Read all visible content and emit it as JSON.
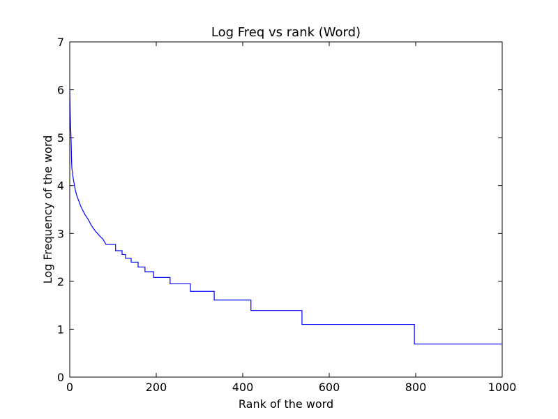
{
  "chart_data": {
    "type": "line",
    "title": "Log Freq vs rank (Word)",
    "xlabel": "Rank of the word",
    "ylabel": "Log Frequency of the word",
    "x": [
      0,
      1,
      2,
      3,
      4,
      5,
      8,
      10,
      13,
      16,
      20,
      24,
      28,
      32,
      36,
      40,
      44,
      48,
      52,
      56,
      60,
      64,
      70,
      76,
      80,
      84,
      106,
      106,
      121,
      121,
      129,
      129,
      142,
      142,
      158,
      158,
      174,
      174,
      194,
      194,
      232,
      232,
      279,
      279,
      334,
      334,
      419,
      419,
      537,
      537,
      797,
      797,
      1000
    ],
    "series": [
      {
        "color": "#0000ff",
        "values": [
          6.0,
          5.5,
          5.2,
          5.0,
          4.6,
          4.35,
          4.15,
          4.05,
          3.9,
          3.8,
          3.7,
          3.6,
          3.52,
          3.45,
          3.38,
          3.33,
          3.27,
          3.2,
          3.14,
          3.09,
          3.04,
          3.0,
          2.94,
          2.89,
          2.83,
          2.77,
          2.77,
          2.64,
          2.64,
          2.56,
          2.56,
          2.48,
          2.48,
          2.4,
          2.4,
          2.3,
          2.3,
          2.2,
          2.2,
          2.08,
          2.08,
          1.95,
          1.95,
          1.79,
          1.79,
          1.61,
          1.61,
          1.39,
          1.39,
          1.1,
          1.1,
          0.69,
          0.69
        ]
      }
    ],
    "xlim": [
      0,
      1000
    ],
    "xticks": [
      0,
      200,
      400,
      600,
      800,
      1000
    ],
    "ylim": [
      0,
      7
    ],
    "yticks": [
      0,
      1,
      2,
      3,
      4,
      5,
      6,
      7
    ],
    "grid": false
  }
}
